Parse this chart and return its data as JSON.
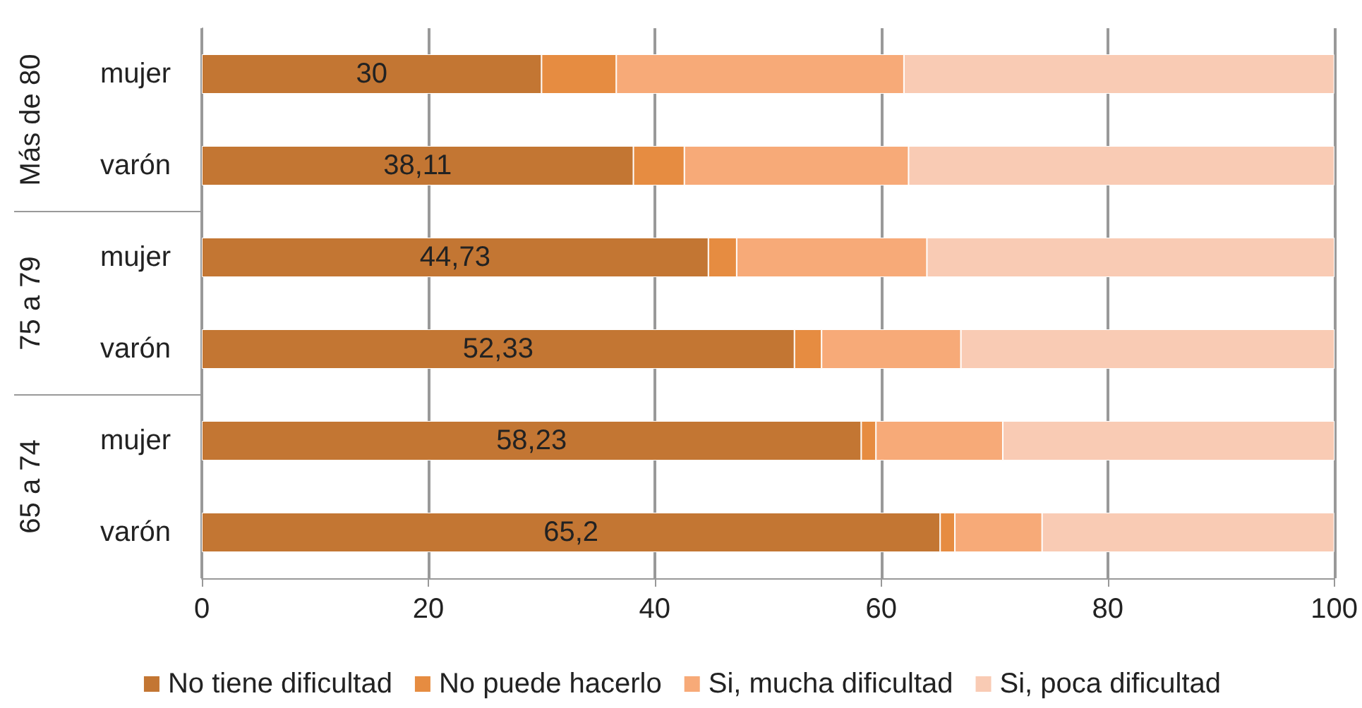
{
  "chart_data": {
    "type": "bar",
    "orientation": "horizontal",
    "stacked": true,
    "categories": [
      "mujer",
      "varón",
      "mujer",
      "varón",
      "mujer",
      "varón"
    ],
    "annotations": [
      "Más de 80",
      "75 a 79",
      "65 a 74"
    ],
    "series": [
      {
        "name": "No tiene dificultad",
        "color": "#c37633",
        "values": [
          30,
          38.11,
          44.73,
          52.33,
          58.23,
          65.2
        ],
        "value_labels": [
          "30",
          "38,11",
          "44,73",
          "52,33",
          "58,23",
          "65,2"
        ]
      },
      {
        "name": "No puede hacerlo",
        "color": "#e68c41",
        "values": [
          6.6,
          4.5,
          2.5,
          2.4,
          1.3,
          1.3
        ]
      },
      {
        "name": "Si, mucha dificultad",
        "color": "#f7aa78",
        "values": [
          25.4,
          19.8,
          16.8,
          12.3,
          11.2,
          7.7
        ]
      },
      {
        "name": "Si, poca dificultad",
        "color": "#f9cbb4",
        "values": [
          38,
          37.6,
          36,
          33,
          29.3,
          25.8
        ]
      }
    ],
    "xlim": [
      0,
      100
    ],
    "xticks": [
      0,
      20,
      40,
      60,
      80,
      100
    ],
    "grid": "x",
    "legend": "bottom"
  }
}
